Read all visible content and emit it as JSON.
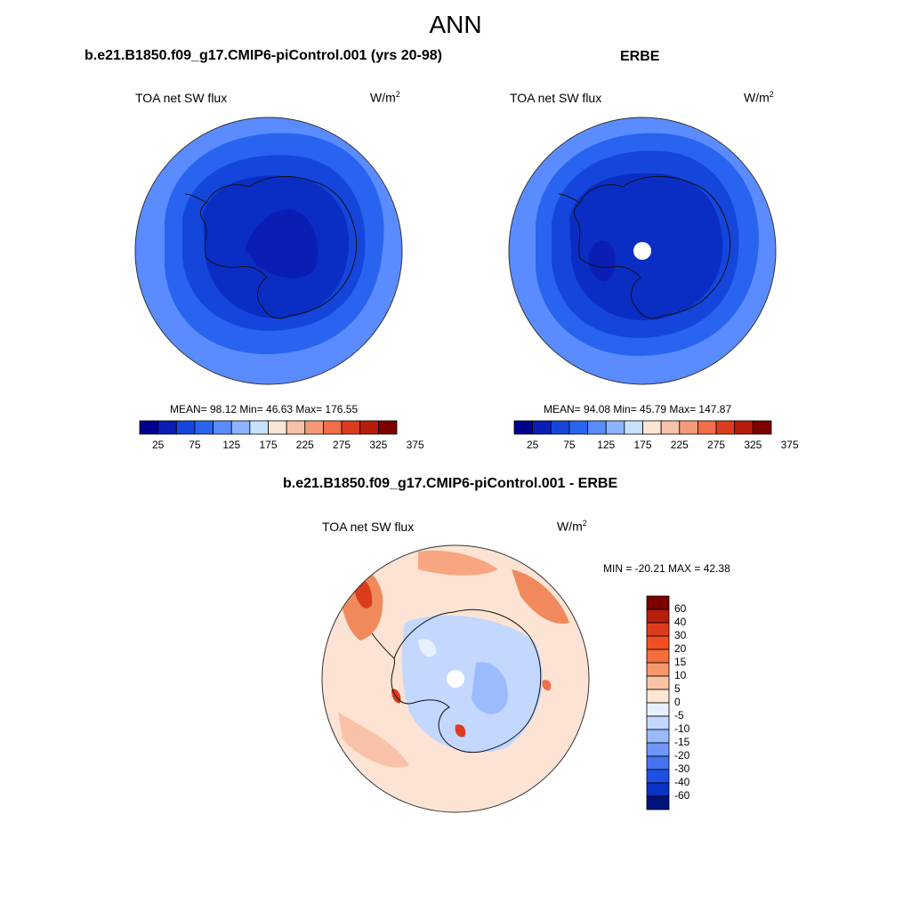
{
  "figure_title": "ANN",
  "panels": [
    {
      "title": "b.e21.B1850.f09_g17.CMIP6-piControl.001 (yrs 20-98)",
      "variable": "TOA net SW flux",
      "units_base": "W/m",
      "units_exp": "2",
      "stats_text": "MEAN=  98.12  Min=  46.63  Max= 176.55",
      "mean": 98.12,
      "min": 46.63,
      "max": 176.55
    },
    {
      "title": "ERBE",
      "variable": "TOA net SW flux",
      "units_base": "W/m",
      "units_exp": "2",
      "stats_text": "MEAN=  94.08  Min=  45.79  Max= 147.87",
      "mean": 94.08,
      "min": 45.79,
      "max": 147.87
    },
    {
      "title": "b.e21.B1850.f09_g17.CMIP6-piControl.001 - ERBE",
      "variable": "TOA net SW flux",
      "units_base": "W/m",
      "units_exp": "2",
      "stats_text": "MIN = -20.21 MAX =  42.38",
      "min": -20.21,
      "max": 42.38
    }
  ],
  "field_colorbar": {
    "labels": [
      "25",
      "75",
      "125",
      "175",
      "225",
      "275",
      "325",
      "375"
    ],
    "colors": [
      "#00008c",
      "#0a1eb4",
      "#1446dc",
      "#2864f0",
      "#5a8cff",
      "#8cb4ff",
      "#c8e1ff",
      "#fbe6d6",
      "#f8c2a8",
      "#f59a78",
      "#f06e4a",
      "#dc3c1e",
      "#b41e0a",
      "#7d0000"
    ]
  },
  "diff_colorbar": {
    "labels": [
      "60",
      "40",
      "30",
      "20",
      "15",
      "10",
      "5",
      "0",
      "-5",
      "-10",
      "-15",
      "-20",
      "-30",
      "-40",
      "-60"
    ],
    "colors": [
      "#7d0000",
      "#b41e0a",
      "#dc3c1e",
      "#f0501e",
      "#f56e3c",
      "#f8966e",
      "#fac3a5",
      "#fde6d2",
      "#e6f0ff",
      "#c3d7ff",
      "#9bbbff",
      "#7096fa",
      "#4673f0",
      "#1e50e6",
      "#0a32c3",
      "#00147d"
    ]
  },
  "colors": {
    "field_outer": "#5a8cff",
    "field_ring1": "#2864f0",
    "field_ring2": "#1446dc",
    "field_core": "#0a2ec4",
    "diff_background": "#fde3d3",
    "diff_positive": "#f08a5c",
    "diff_negative": "#c3d7ff"
  }
}
